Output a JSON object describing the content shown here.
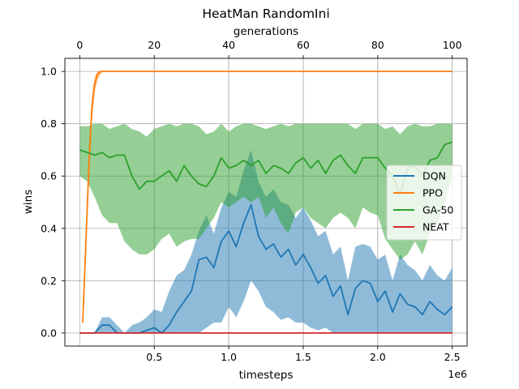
{
  "chart_data": {
    "type": "line",
    "title": "HeatMan RandomIni",
    "xlabel": "timesteps",
    "x_offset_text": "1e6",
    "ylabel": "wins",
    "top_xlabel": "generations",
    "xlim": [
      -0.1,
      2.6
    ],
    "ylim": [
      -0.05,
      1.05
    ],
    "top_xlim": [
      -4,
      104
    ],
    "x_ticks": [
      0.5,
      1.0,
      1.5,
      2.0,
      2.5
    ],
    "x_tick_labels": [
      "0.5",
      "1.0",
      "1.5",
      "2.0",
      "2.5"
    ],
    "top_ticks": [
      0,
      20,
      40,
      60,
      80,
      100
    ],
    "top_tick_labels": [
      "0",
      "20",
      "40",
      "60",
      "80",
      "100"
    ],
    "y_ticks": [
      0.0,
      0.2,
      0.4,
      0.6,
      0.8,
      1.0
    ],
    "y_tick_labels": [
      "0.0",
      "0.2",
      "0.4",
      "0.6",
      "0.8",
      "1.0"
    ],
    "grid": true,
    "legend_position": "center-right",
    "series": [
      {
        "name": "DQN",
        "color": "#1f77b4",
        "axis": "timesteps",
        "x": [
          0.0,
          0.1,
          0.15,
          0.2,
          0.25,
          0.3,
          0.35,
          0.4,
          0.45,
          0.5,
          0.55,
          0.6,
          0.65,
          0.7,
          0.75,
          0.8,
          0.85,
          0.9,
          0.95,
          1.0,
          1.05,
          1.1,
          1.15,
          1.2,
          1.25,
          1.3,
          1.35,
          1.4,
          1.45,
          1.5,
          1.55,
          1.6,
          1.65,
          1.7,
          1.75,
          1.8,
          1.85,
          1.9,
          1.95,
          2.0,
          2.05,
          2.1,
          2.15,
          2.2,
          2.25,
          2.3,
          2.35,
          2.4,
          2.45,
          2.5
        ],
        "y": [
          0.0,
          0.0,
          0.03,
          0.03,
          0.0,
          0.0,
          0.0,
          0.0,
          0.01,
          0.02,
          0.0,
          0.03,
          0.08,
          0.12,
          0.16,
          0.28,
          0.29,
          0.25,
          0.35,
          0.39,
          0.33,
          0.42,
          0.49,
          0.37,
          0.32,
          0.34,
          0.29,
          0.32,
          0.26,
          0.3,
          0.25,
          0.19,
          0.22,
          0.14,
          0.18,
          0.07,
          0.17,
          0.2,
          0.19,
          0.12,
          0.16,
          0.08,
          0.15,
          0.11,
          0.1,
          0.07,
          0.12,
          0.09,
          0.07,
          0.1
        ],
        "lower": [
          0.0,
          0.0,
          0.0,
          0.0,
          0.0,
          0.0,
          0.0,
          0.0,
          0.0,
          0.0,
          0.0,
          0.0,
          0.0,
          0.0,
          0.0,
          0.0,
          0.02,
          0.04,
          0.04,
          0.1,
          0.06,
          0.12,
          0.2,
          0.16,
          0.1,
          0.08,
          0.05,
          0.06,
          0.04,
          0.04,
          0.02,
          0.01,
          0.02,
          0.0,
          0.0,
          0.0,
          0.0,
          0.0,
          0.0,
          0.0,
          0.0,
          0.0,
          0.0,
          0.0,
          0.0,
          0.0,
          0.0,
          0.0,
          0.0,
          0.0
        ],
        "upper": [
          0.0,
          0.0,
          0.06,
          0.06,
          0.03,
          0.0,
          0.03,
          0.04,
          0.06,
          0.09,
          0.08,
          0.16,
          0.22,
          0.24,
          0.3,
          0.39,
          0.45,
          0.38,
          0.48,
          0.54,
          0.52,
          0.62,
          0.7,
          0.58,
          0.52,
          0.55,
          0.5,
          0.49,
          0.44,
          0.48,
          0.43,
          0.37,
          0.39,
          0.3,
          0.33,
          0.2,
          0.33,
          0.34,
          0.33,
          0.28,
          0.3,
          0.2,
          0.3,
          0.26,
          0.24,
          0.2,
          0.26,
          0.22,
          0.2,
          0.25
        ]
      },
      {
        "name": "PPO",
        "color": "#ff7f0e",
        "axis": "timesteps",
        "x": [
          0.02,
          0.04,
          0.06,
          0.08,
          0.1,
          0.12,
          0.14,
          0.16,
          0.2,
          0.3,
          0.5,
          1.0,
          1.5,
          2.0,
          2.5
        ],
        "y": [
          0.04,
          0.33,
          0.62,
          0.85,
          0.95,
          0.99,
          1.0,
          1.0,
          1.0,
          1.0,
          1.0,
          1.0,
          1.0,
          1.0,
          1.0
        ],
        "lower": [
          0.04,
          0.28,
          0.55,
          0.8,
          0.92,
          0.97,
          0.99,
          1.0,
          1.0,
          1.0,
          1.0,
          1.0,
          1.0,
          1.0,
          1.0
        ],
        "upper": [
          0.04,
          0.38,
          0.7,
          0.9,
          0.98,
          1.0,
          1.0,
          1.0,
          1.0,
          1.0,
          1.0,
          1.0,
          1.0,
          1.0,
          1.0
        ]
      },
      {
        "name": "GA-50",
        "color": "#2ca02c",
        "axis": "generations",
        "x": [
          0,
          2,
          4,
          6,
          8,
          10,
          12,
          14,
          16,
          18,
          20,
          22,
          24,
          26,
          28,
          30,
          32,
          34,
          36,
          38,
          40,
          42,
          44,
          46,
          48,
          50,
          52,
          54,
          56,
          58,
          60,
          62,
          64,
          66,
          68,
          70,
          72,
          74,
          76,
          78,
          80,
          82,
          84,
          86,
          88,
          90,
          92,
          94,
          96,
          98,
          100
        ],
        "y": [
          0.7,
          0.69,
          0.68,
          0.69,
          0.67,
          0.68,
          0.68,
          0.6,
          0.55,
          0.58,
          0.58,
          0.6,
          0.62,
          0.58,
          0.64,
          0.6,
          0.57,
          0.56,
          0.6,
          0.67,
          0.63,
          0.64,
          0.66,
          0.64,
          0.66,
          0.61,
          0.64,
          0.63,
          0.61,
          0.65,
          0.67,
          0.63,
          0.66,
          0.61,
          0.66,
          0.68,
          0.64,
          0.61,
          0.67,
          0.67,
          0.67,
          0.63,
          0.6,
          0.53,
          0.63,
          0.64,
          0.6,
          0.66,
          0.67,
          0.72,
          0.73
        ],
        "lower": [
          0.6,
          0.58,
          0.52,
          0.45,
          0.42,
          0.42,
          0.35,
          0.32,
          0.3,
          0.3,
          0.32,
          0.36,
          0.38,
          0.33,
          0.35,
          0.36,
          0.36,
          0.4,
          0.44,
          0.5,
          0.48,
          0.5,
          0.52,
          0.5,
          0.52,
          0.44,
          0.48,
          0.42,
          0.38,
          0.46,
          0.48,
          0.44,
          0.42,
          0.4,
          0.44,
          0.46,
          0.44,
          0.4,
          0.48,
          0.46,
          0.45,
          0.36,
          0.32,
          0.28,
          0.3,
          0.35,
          0.3,
          0.38,
          0.42,
          0.5,
          0.6
        ],
        "upper": [
          0.79,
          0.79,
          0.8,
          0.8,
          0.78,
          0.79,
          0.8,
          0.78,
          0.77,
          0.75,
          0.78,
          0.79,
          0.8,
          0.79,
          0.8,
          0.8,
          0.79,
          0.76,
          0.77,
          0.8,
          0.77,
          0.79,
          0.8,
          0.8,
          0.79,
          0.78,
          0.79,
          0.8,
          0.79,
          0.8,
          0.8,
          0.8,
          0.8,
          0.8,
          0.8,
          0.8,
          0.8,
          0.78,
          0.8,
          0.8,
          0.8,
          0.78,
          0.79,
          0.76,
          0.79,
          0.8,
          0.79,
          0.79,
          0.8,
          0.8,
          0.8
        ]
      },
      {
        "name": "NEAT",
        "color": "#d62728",
        "axis": "generations",
        "x": [
          0,
          100
        ],
        "y": [
          0.0,
          0.0
        ],
        "lower": [
          0.0,
          0.0
        ],
        "upper": [
          0.0,
          0.0
        ]
      }
    ]
  }
}
